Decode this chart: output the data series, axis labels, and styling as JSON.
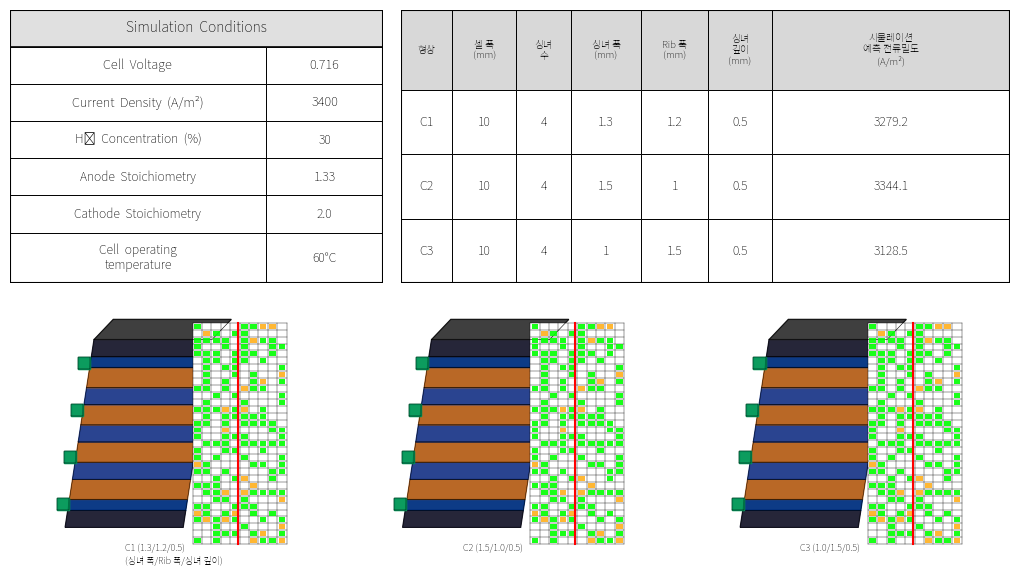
{
  "left_table": {
    "title": "Simulation  Conditions",
    "rows": [
      [
        "Cell  Voltage",
        "0.716"
      ],
      [
        "Current  Density  (A/m²)",
        "3400"
      ],
      [
        "H₂  Concentration  (%)",
        "30"
      ],
      [
        "Anode  Stoichiometry",
        "1.33"
      ],
      [
        "Cathode  Stoichiometry",
        "2.0"
      ],
      [
        "Cell  operating\ntemperature",
        "60°C"
      ]
    ],
    "bold_rows": [
      0,
      1
    ],
    "bg_title": "#e0e0e0",
    "bg_normal": "#ffffff"
  },
  "right_table": {
    "headers": [
      "형상",
      "셀 폭\n(mm)",
      "싱녀\n수",
      "싱녀 폭\n(mm)",
      "Rib 폭\n(mm)",
      "싱녀\n깊이\n(mm)",
      "시물레이션\n예측 전류밀도\n(A/m²)"
    ],
    "rows": [
      [
        "C1",
        "10",
        "4",
        "1.3",
        "1.2",
        "0.5",
        "3279.2"
      ],
      [
        "C2",
        "10",
        "4",
        "1.5",
        "1",
        "0.5",
        "3344.1"
      ],
      [
        "C3",
        "10",
        "4",
        "1",
        "1.5",
        "0.5",
        "3128.5"
      ]
    ],
    "bg_header": "#d8d8d8",
    "bg_normal": "#ffffff"
  },
  "bottom_labels": [
    "C1 (1.3/1.2/0.5)\n(싱녀 폭/Rib 폭/싱녀 깊이)",
    "C2 (1.5/1.0/0.5)",
    "C3 (1.0/1.5/0.5)"
  ],
  "bg_color": "#ffffff"
}
